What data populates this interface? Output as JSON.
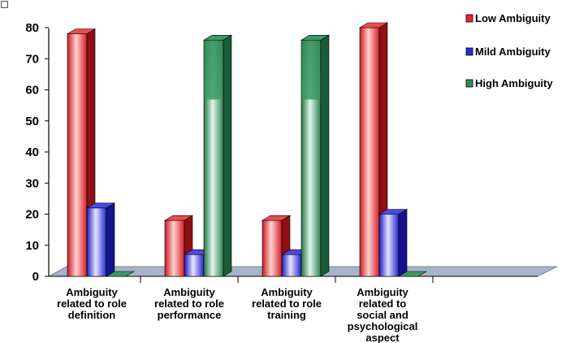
{
  "chart_data": {
    "type": "bar",
    "style": "3d-cylinder-bar",
    "categories": [
      [
        "Ambiguity",
        "related to role",
        "definition"
      ],
      [
        "Ambiguity",
        "related to role",
        "performance"
      ],
      [
        "Ambiguity",
        "related to role",
        "training"
      ],
      [
        "Ambiguity",
        "related to",
        "social and",
        "psychological",
        "aspect"
      ]
    ],
    "series": [
      {
        "name": "Low Ambiguity",
        "values": [
          78,
          18,
          18,
          80
        ],
        "color": "#e8262a"
      },
      {
        "name": "Mild Ambiguity",
        "values": [
          22,
          7,
          7,
          20
        ],
        "color": "#2b2bd8"
      },
      {
        "name": "High Ambiguity",
        "values": [
          0,
          76,
          76,
          0
        ],
        "color": "#2f8c57"
      }
    ],
    "y_ticks": [
      0,
      10,
      20,
      30,
      40,
      50,
      60,
      70,
      80
    ],
    "ylim": [
      0,
      80
    ],
    "legend_position": "top-right",
    "grid": false,
    "title": "",
    "xlabel": "",
    "ylabel": ""
  }
}
